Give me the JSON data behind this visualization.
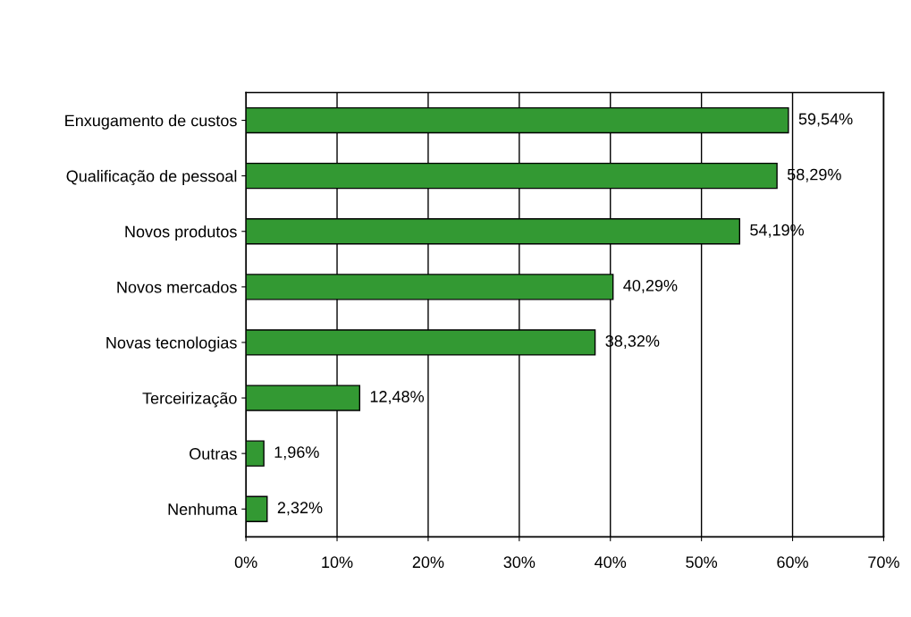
{
  "chart_data": {
    "type": "bar",
    "orientation": "horizontal",
    "categories": [
      "Enxugamento de custos",
      "Qualificação de pessoal",
      "Novos produtos",
      "Novos mercados",
      "Novas tecnologias",
      "Terceirização",
      "Outras",
      "Nenhuma"
    ],
    "values": [
      59.54,
      58.29,
      54.19,
      40.29,
      38.32,
      12.48,
      1.96,
      2.32
    ],
    "value_labels": [
      "59,54%",
      "58,29%",
      "54,19%",
      "40,29%",
      "38,32%",
      "12,48%",
      "1,96%",
      "2,32%"
    ],
    "color": "#339933",
    "xlim": [
      0,
      70
    ],
    "xticks": [
      {
        "value": 0,
        "label": "0%"
      },
      {
        "value": 10,
        "label": "10%"
      },
      {
        "value": 20,
        "label": "20%"
      },
      {
        "value": 30,
        "label": "30%"
      },
      {
        "value": 40,
        "label": "40%"
      },
      {
        "value": 50,
        "label": "50%"
      },
      {
        "value": 60,
        "label": "60%"
      },
      {
        "value": 70,
        "label": "70%"
      }
    ],
    "grid": "x"
  }
}
